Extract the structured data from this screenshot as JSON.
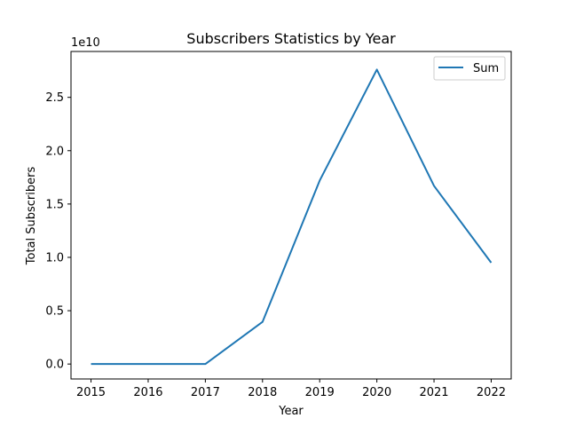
{
  "chart_data": {
    "type": "line",
    "title": "Subscribers Statistics by Year",
    "xlabel": "Year",
    "ylabel": "Total Subscribers",
    "y_offset_label": "1e10",
    "x": [
      2015,
      2016,
      2017,
      2018,
      2019,
      2020,
      2021,
      2022
    ],
    "x_tick_labels": [
      "2015",
      "2016",
      "2017",
      "2018",
      "2019",
      "2020",
      "2021",
      "2022"
    ],
    "y_ticks": [
      0,
      0.5,
      1.0,
      1.5,
      2.0,
      2.5
    ],
    "y_tick_labels": [
      "0.0",
      "0.5",
      "1.0",
      "1.5",
      "2.0",
      "2.5"
    ],
    "ylim": [
      -1.4,
      29.3
    ],
    "series": [
      {
        "name": "Sum",
        "color": "#1f77b4",
        "values": [
          0.0,
          0.0,
          0.0,
          3.95,
          17.2,
          27.6,
          16.7,
          9.5
        ],
        "value_scale": 1000000000.0
      }
    ],
    "legend": {
      "position": "top-right",
      "entries": [
        "Sum"
      ]
    },
    "grid": false
  }
}
